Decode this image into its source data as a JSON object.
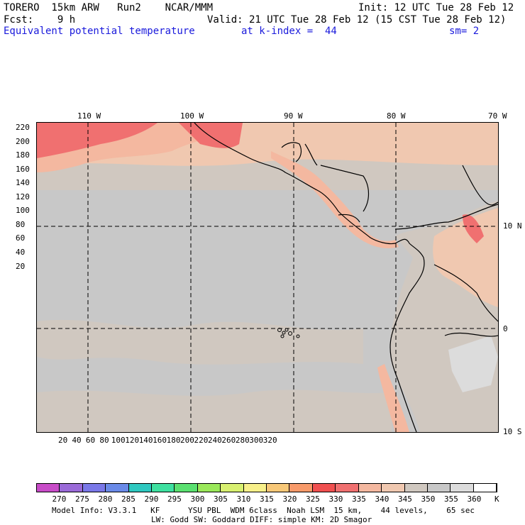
{
  "header": {
    "model": "TORERO  15km ARW   Run2    NCAR/MMM",
    "init": "Init: 12 UTC Tue 28 Feb 12",
    "fcst": "Fcst:    9 h",
    "valid": "Valid: 21 UTC Tue 28 Feb 12 (15 CST Tue 28 Feb 12)",
    "field": "Equivalent potential temperature",
    "kindex": "at k-index =  44",
    "sm": "sm= 2"
  },
  "map": {
    "lon_labels": [
      "110 W",
      "100 W",
      "90 W",
      "80 W",
      "70 W"
    ],
    "lat_labels": [
      "10 N",
      "0",
      "10 S"
    ],
    "x_ticks": [
      "20",
      "40",
      "60",
      "80",
      "100",
      "120",
      "140",
      "160",
      "180",
      "200",
      "220",
      "240",
      "260",
      "280",
      "300",
      "320"
    ],
    "y_ticks": [
      "220",
      "200",
      "180",
      "160",
      "140",
      "120",
      "100",
      "80",
      "60",
      "40",
      "20"
    ],
    "background_color": "#c8c8c8"
  },
  "colorbar": {
    "labels": [
      "270",
      "275",
      "280",
      "285",
      "290",
      "295",
      "300",
      "305",
      "310",
      "315",
      "320",
      "325",
      "330",
      "335",
      "340",
      "345",
      "350",
      "355",
      "360"
    ],
    "unit": "K",
    "colors": [
      "#c84cc8",
      "#9a6ad8",
      "#7a78e8",
      "#6a8ae8",
      "#2ec8c0",
      "#3ee0a0",
      "#5ae070",
      "#9ae85a",
      "#d8f070",
      "#f8f08a",
      "#f8c878",
      "#f89a6a",
      "#f05050",
      "#f07070",
      "#f4b8a0",
      "#f0c8b0",
      "#d0c8c0",
      "#c8c8c8",
      "#dcdcdc",
      "#ffffff"
    ]
  },
  "footer": {
    "line1": "Model Info: V3.3.1   KF      YSU PBL  WDM 6class  Noah LSM  15 km,    44 levels,    65 sec",
    "line2": "LW: Godd SW: Goddard DIFF: simple KM: 2D Smagor"
  }
}
